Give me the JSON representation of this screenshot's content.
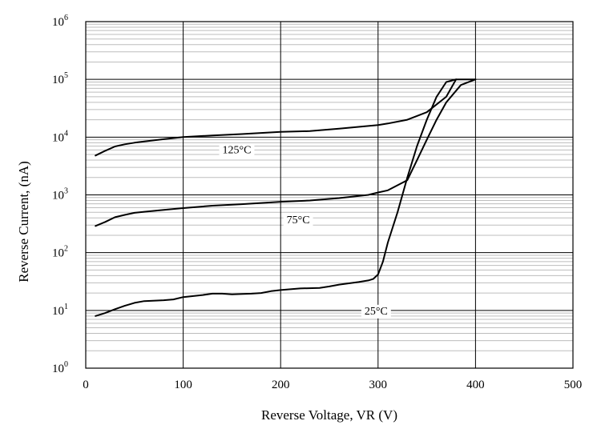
{
  "chart_data": {
    "type": "line",
    "title": "",
    "xlabel": "Reverse Voltage, VR (V)",
    "ylabel": "Reverse Current, (nA)",
    "xlim": [
      0,
      500
    ],
    "ylim": [
      1,
      1000000
    ],
    "yscale": "log",
    "grid": true,
    "legend": "none",
    "x_ticks": [
      "0",
      "100",
      "200",
      "300",
      "400",
      "500"
    ],
    "y_ticks": [
      {
        "base": "10",
        "exp": "0"
      },
      {
        "base": "10",
        "exp": "1"
      },
      {
        "base": "10",
        "exp": "2"
      },
      {
        "base": "10",
        "exp": "3"
      },
      {
        "base": "10",
        "exp": "4"
      },
      {
        "base": "10",
        "exp": "5"
      },
      {
        "base": "10",
        "exp": "6"
      }
    ],
    "series": [
      {
        "name": "125°C",
        "x": [
          10,
          20,
          30,
          40,
          50,
          60,
          80,
          100,
          130,
          160,
          200,
          230,
          260,
          290,
          300,
          310,
          330,
          350,
          370,
          380,
          400
        ],
        "y": [
          4800,
          5800,
          6900,
          7500,
          8000,
          8400,
          9200,
          10000,
          10700,
          11300,
          12300,
          12700,
          14000,
          15600,
          16200,
          17200,
          20000,
          27000,
          50000,
          100000,
          100000
        ]
      },
      {
        "name": "75°C",
        "x": [
          10,
          20,
          30,
          40,
          50,
          60,
          80,
          100,
          130,
          160,
          200,
          230,
          260,
          290,
          300,
          310,
          330,
          340,
          350,
          360,
          370,
          385,
          400
        ],
        "y": [
          290,
          340,
          410,
          450,
          490,
          510,
          550,
          590,
          650,
          690,
          760,
          800,
          880,
          1000,
          1100,
          1200,
          1800,
          4000,
          9000,
          20000,
          40000,
          80000,
          100000
        ]
      },
      {
        "name": "25°C",
        "x": [
          10,
          20,
          30,
          40,
          50,
          60,
          80,
          90,
          100,
          120,
          130,
          140,
          150,
          170,
          180,
          190,
          200,
          220,
          240,
          250,
          260,
          280,
          290,
          295,
          300,
          305,
          310,
          320,
          330,
          340,
          350,
          360,
          370,
          380
        ],
        "y": [
          8,
          9,
          10.5,
          12,
          13.5,
          14.5,
          15,
          15.5,
          17,
          18.5,
          19.5,
          19.5,
          19,
          19.5,
          20,
          21.5,
          22.5,
          24,
          24.5,
          26,
          28,
          31,
          33,
          35,
          42,
          70,
          150,
          500,
          2000,
          7000,
          20000,
          50000,
          90000,
          100000
        ]
      }
    ],
    "annotations": [
      {
        "text": "125°C",
        "x": 155,
        "y": 6200
      },
      {
        "text": "75°C",
        "x": 218,
        "y": 380
      },
      {
        "text": "25°C",
        "x": 298,
        "y": 10
      }
    ]
  }
}
